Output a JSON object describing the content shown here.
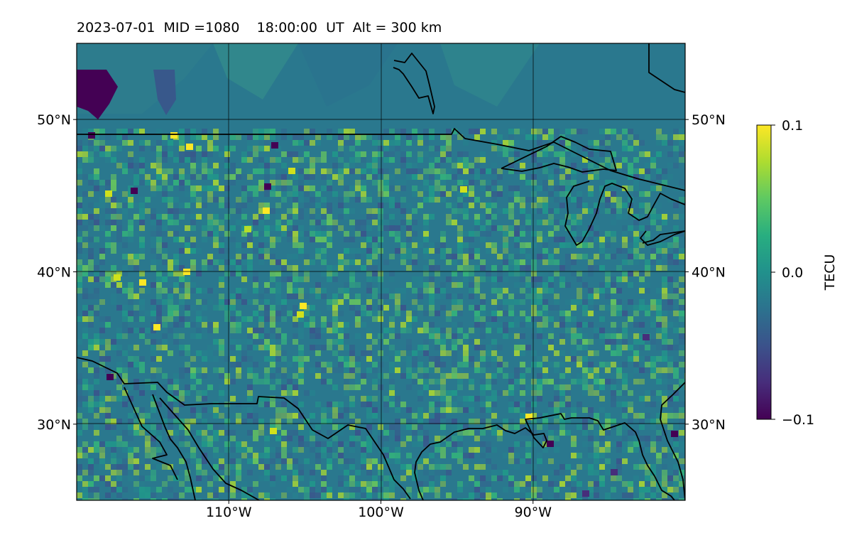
{
  "title": {
    "date": "2023-07-01",
    "mid": "MID =1080",
    "time": "18:00:00",
    "ut": "UT",
    "alt": "Alt = 300 km"
  },
  "map": {
    "lon_range": [
      -120,
      -80
    ],
    "lat_range": [
      25,
      55
    ],
    "lon_ticks": [
      {
        "value": -110,
        "label": "110°W"
      },
      {
        "value": -100,
        "label": "100°W"
      },
      {
        "value": -90,
        "label": "90°W"
      }
    ],
    "lat_ticks": [
      {
        "value": 50,
        "label": "50°N"
      },
      {
        "value": 40,
        "label": "40°N"
      },
      {
        "value": 30,
        "label": "30°N"
      }
    ],
    "grid": true
  },
  "colorbar": {
    "label": "TECU",
    "colormap": "viridis",
    "min": -0.1,
    "max": 0.1,
    "ticks": [
      {
        "value": 0.1,
        "label": "0.1"
      },
      {
        "value": 0.0,
        "label": "0.0"
      },
      {
        "value": -0.1,
        "label": "−0.1"
      }
    ]
  },
  "colors": {
    "background_field": "#2a788e",
    "coastline": "#000000",
    "grid_line": "#000000"
  }
}
